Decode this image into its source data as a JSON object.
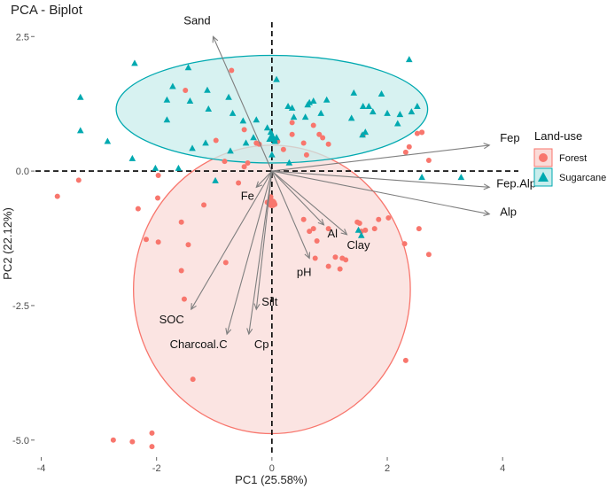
{
  "chart_data": {
    "type": "scatter",
    "subtype": "pca-biplot",
    "title": "PCA - Biplot",
    "xlabel": "PC1 (25.58%)",
    "ylabel": "PC2 (22.12%)",
    "xlim": [
      -4.1,
      4.35
    ],
    "ylim": [
      -5.3,
      2.85
    ],
    "xticks": [
      -4,
      -2,
      0,
      2,
      4
    ],
    "yticks": [
      -5.0,
      -2.5,
      0.0,
      2.5
    ],
    "xtick_labels": [
      "-4",
      "-2",
      "0",
      "2",
      "4"
    ],
    "ytick_labels": [
      "-5.0",
      "-2.5",
      "0.0",
      "2.5"
    ],
    "grid": false,
    "reference_lines": {
      "x": 0,
      "y": 0,
      "style": "dashed"
    },
    "legend": {
      "title": "Land-use",
      "position": "right",
      "entries": [
        {
          "label": "Forest",
          "shape": "circle",
          "color": "#F8766D"
        },
        {
          "label": "Sugarcane",
          "shape": "triangle",
          "color": "#00A9B0"
        }
      ]
    },
    "colors": {
      "forest": "#F8766D",
      "sugarcane": "#00A9B0",
      "forest_fill": "#FADBD8",
      "sugarcane_fill": "#C9EDEC",
      "arrow": "#7f7f7f"
    },
    "series": [
      {
        "name": "Forest",
        "shape": "circle",
        "points": [
          [
            -3.72,
            -0.47
          ],
          [
            -3.35,
            -0.17
          ],
          [
            -2.75,
            -5.0
          ],
          [
            -2.42,
            -5.03
          ],
          [
            -2.32,
            -0.7
          ],
          [
            -2.18,
            -1.27
          ],
          [
            -2.08,
            -4.87
          ],
          [
            -2.08,
            -5.12
          ],
          [
            -1.98,
            -0.5
          ],
          [
            -1.97,
            -0.08
          ],
          [
            -1.97,
            -1.32
          ],
          [
            -1.57,
            -0.95
          ],
          [
            -1.45,
            -1.37
          ],
          [
            -1.57,
            -1.85
          ],
          [
            -1.52,
            -2.38
          ],
          [
            -1.37,
            -3.87
          ],
          [
            -1.18,
            -0.63
          ],
          [
            -1.5,
            1.5
          ],
          [
            -0.8,
            -1.7
          ],
          [
            -0.7,
            1.87
          ],
          [
            -0.97,
            0.57
          ],
          [
            -0.82,
            0.18
          ],
          [
            -0.48,
            0.08
          ],
          [
            -0.58,
            -0.22
          ],
          [
            -0.48,
            0.77
          ],
          [
            -0.27,
            0.52
          ],
          [
            -0.42,
            0.15
          ],
          [
            -0.22,
            0.5
          ],
          [
            -0.02,
            -0.48
          ],
          [
            -0.08,
            -0.58
          ],
          [
            0.05,
            -0.62
          ],
          [
            0.1,
            0.55
          ],
          [
            0.35,
            0.9
          ],
          [
            0.35,
            0.68
          ],
          [
            0.55,
            0.52
          ],
          [
            0.72,
            0.85
          ],
          [
            0.82,
            0.68
          ],
          [
            0.88,
            0.62
          ],
          [
            0.98,
            0.5
          ],
          [
            0.72,
            -1.07
          ],
          [
            0.65,
            -1.12
          ],
          [
            0.78,
            -1.3
          ],
          [
            0.98,
            -1.07
          ],
          [
            0.98,
            -1.77
          ],
          [
            0.75,
            -1.62
          ],
          [
            1.22,
            -1.62
          ],
          [
            1.28,
            -1.65
          ],
          [
            1.18,
            -1.82
          ],
          [
            1.48,
            -0.95
          ],
          [
            1.52,
            -0.97
          ],
          [
            1.55,
            -1.12
          ],
          [
            1.62,
            -1.1
          ],
          [
            1.78,
            -1.07
          ],
          [
            1.58,
            0.67
          ],
          [
            2.02,
            -0.87
          ],
          [
            2.32,
            0.35
          ],
          [
            2.52,
            0.7
          ],
          [
            2.6,
            0.72
          ],
          [
            2.6,
            0.72
          ],
          [
            2.55,
            -1.07
          ],
          [
            2.72,
            0.2
          ],
          [
            2.72,
            -1.55
          ],
          [
            2.32,
            -3.52
          ],
          [
            2.3,
            -1.35
          ],
          [
            2.38,
            0.45
          ],
          [
            0.2,
            0.4
          ],
          [
            0.6,
            0.3
          ],
          [
            0.55,
            -0.9
          ],
          [
            1.1,
            -1.6
          ],
          [
            1.85,
            -0.9
          ]
        ],
        "centroid": [
          0.0,
          -0.6
        ]
      },
      {
        "name": "Sugarcane",
        "shape": "triangle",
        "points": [
          [
            -3.32,
            1.37
          ],
          [
            -3.32,
            0.75
          ],
          [
            -2.85,
            0.55
          ],
          [
            -2.38,
            2.0
          ],
          [
            -2.42,
            0.23
          ],
          [
            -2.02,
            0.05
          ],
          [
            -1.82,
            1.32
          ],
          [
            -1.72,
            1.57
          ],
          [
            -1.42,
            1.3
          ],
          [
            -1.45,
            1.92
          ],
          [
            -1.82,
            0.95
          ],
          [
            -1.1,
            1.15
          ],
          [
            -1.12,
            1.5
          ],
          [
            -0.75,
            1.37
          ],
          [
            -0.68,
            1.07
          ],
          [
            -0.72,
            0.37
          ],
          [
            -0.5,
            0.93
          ],
          [
            -1.38,
            0.42
          ],
          [
            -1.15,
            0.52
          ],
          [
            -1.62,
            0.05
          ],
          [
            -0.98,
            -0.18
          ],
          [
            -0.45,
            0.52
          ],
          [
            -0.32,
            0.62
          ],
          [
            -0.27,
            0.95
          ],
          [
            -0.08,
            0.8
          ],
          [
            -0.02,
            0.72
          ],
          [
            0.08,
            1.7
          ],
          [
            0.08,
            0.62
          ],
          [
            0.28,
            1.2
          ],
          [
            0.35,
            1.17
          ],
          [
            0.38,
            1.0
          ],
          [
            0.58,
            1.0
          ],
          [
            0.62,
            1.23
          ],
          [
            0.65,
            1.27
          ],
          [
            0.72,
            1.3
          ],
          [
            0.85,
            1.07
          ],
          [
            0.95,
            1.32
          ],
          [
            1.38,
            0.98
          ],
          [
            1.42,
            1.45
          ],
          [
            1.57,
            0.67
          ],
          [
            1.62,
            0.72
          ],
          [
            1.55,
            -1.2
          ],
          [
            1.68,
            1.2
          ],
          [
            1.9,
            1.43
          ],
          [
            2.0,
            1.07
          ],
          [
            2.22,
            1.05
          ],
          [
            2.18,
            0.88
          ],
          [
            2.42,
            1.1
          ],
          [
            2.52,
            1.2
          ],
          [
            2.38,
            2.07
          ],
          [
            2.6,
            -0.12
          ],
          [
            3.28,
            -0.12
          ],
          [
            1.58,
            1.2
          ],
          [
            1.5,
            -1.1
          ],
          [
            1.75,
            1.1
          ],
          [
            0.05,
            0.55
          ],
          [
            0.3,
            0.15
          ],
          [
            0.0,
            0.3
          ]
        ],
        "centroid": [
          0.0,
          0.62
        ]
      }
    ],
    "ellipses": [
      {
        "group": "Forest",
        "center": [
          0.0,
          -2.2
        ],
        "semi_axes": [
          2.4,
          2.68
        ],
        "angle_deg": 0
      },
      {
        "group": "Sugarcane",
        "center": [
          0.0,
          1.15
        ],
        "semi_axes": [
          2.7,
          1.0
        ],
        "angle_deg": 0
      }
    ],
    "loadings": [
      {
        "name": "Sand",
        "x": -1.02,
        "y": 2.5
      },
      {
        "name": "Fep",
        "x": 3.77,
        "y": 0.48
      },
      {
        "name": "Fep.Alp",
        "x": 3.77,
        "y": -0.3
      },
      {
        "name": "Alp",
        "x": 3.77,
        "y": -0.8
      },
      {
        "name": "Fe",
        "x": -0.27,
        "y": -0.3
      },
      {
        "name": "Al",
        "x": 0.9,
        "y": -1.0
      },
      {
        "name": "Clay",
        "x": 1.3,
        "y": -1.18
      },
      {
        "name": "pH",
        "x": 0.65,
        "y": -1.62
      },
      {
        "name": "SOC",
        "x": -1.4,
        "y": -2.57
      },
      {
        "name": "Charcoal.C",
        "x": -0.78,
        "y": -3.03
      },
      {
        "name": "Silt",
        "x": -0.27,
        "y": -2.57
      },
      {
        "name": "Cp",
        "x": -0.4,
        "y": -3.03
      }
    ]
  }
}
